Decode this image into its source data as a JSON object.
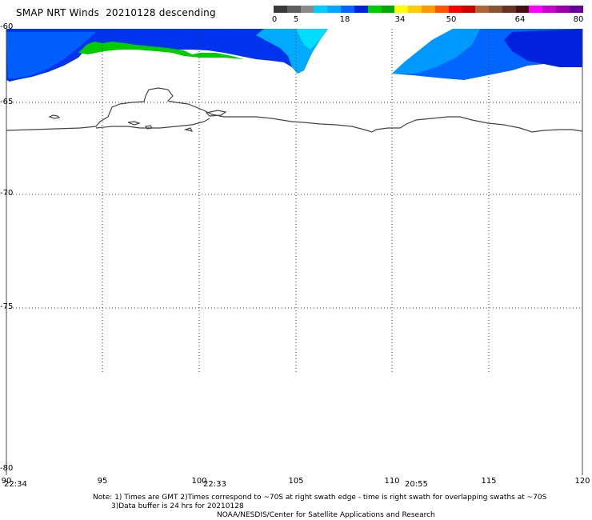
{
  "title": "SMAP NRT Winds",
  "date": "20210128",
  "pass": "descending",
  "colorbar": {
    "labels": [
      "0",
      "5",
      "18",
      "34",
      "50",
      "64",
      "80"
    ],
    "segments": [
      "#3a3a3a",
      "#5e5e5e",
      "#8a8a8a",
      "#00ccff",
      "#00a8ff",
      "#0066ff",
      "#0022dd",
      "#00cc00",
      "#00aa00",
      "#ffff00",
      "#ffcc00",
      "#ff9900",
      "#ff5500",
      "#ff0000",
      "#cc0000",
      "#aa6633",
      "#885533",
      "#663322",
      "#441111",
      "#ff00ff",
      "#cc00cc",
      "#9900aa",
      "#660099"
    ]
  },
  "latitudes": [
    "-60",
    "-65",
    "-70",
    "-75",
    "-80"
  ],
  "longitudes": [
    "90",
    "95",
    "100",
    "105",
    "110",
    "115",
    "120"
  ],
  "times": [
    "22:34",
    "22:33",
    "20:55"
  ],
  "notes": {
    "line1": "Note: 1) Times are GMT 2)Times correspond to ~70S at right swath edge - time is right swath for overlapping swaths at ~70S",
    "line2": "3)Data buffer is 24 hrs for 20210128",
    "line3": "NOAA/NESDIS/Center for Satellite Applications and Research"
  }
}
